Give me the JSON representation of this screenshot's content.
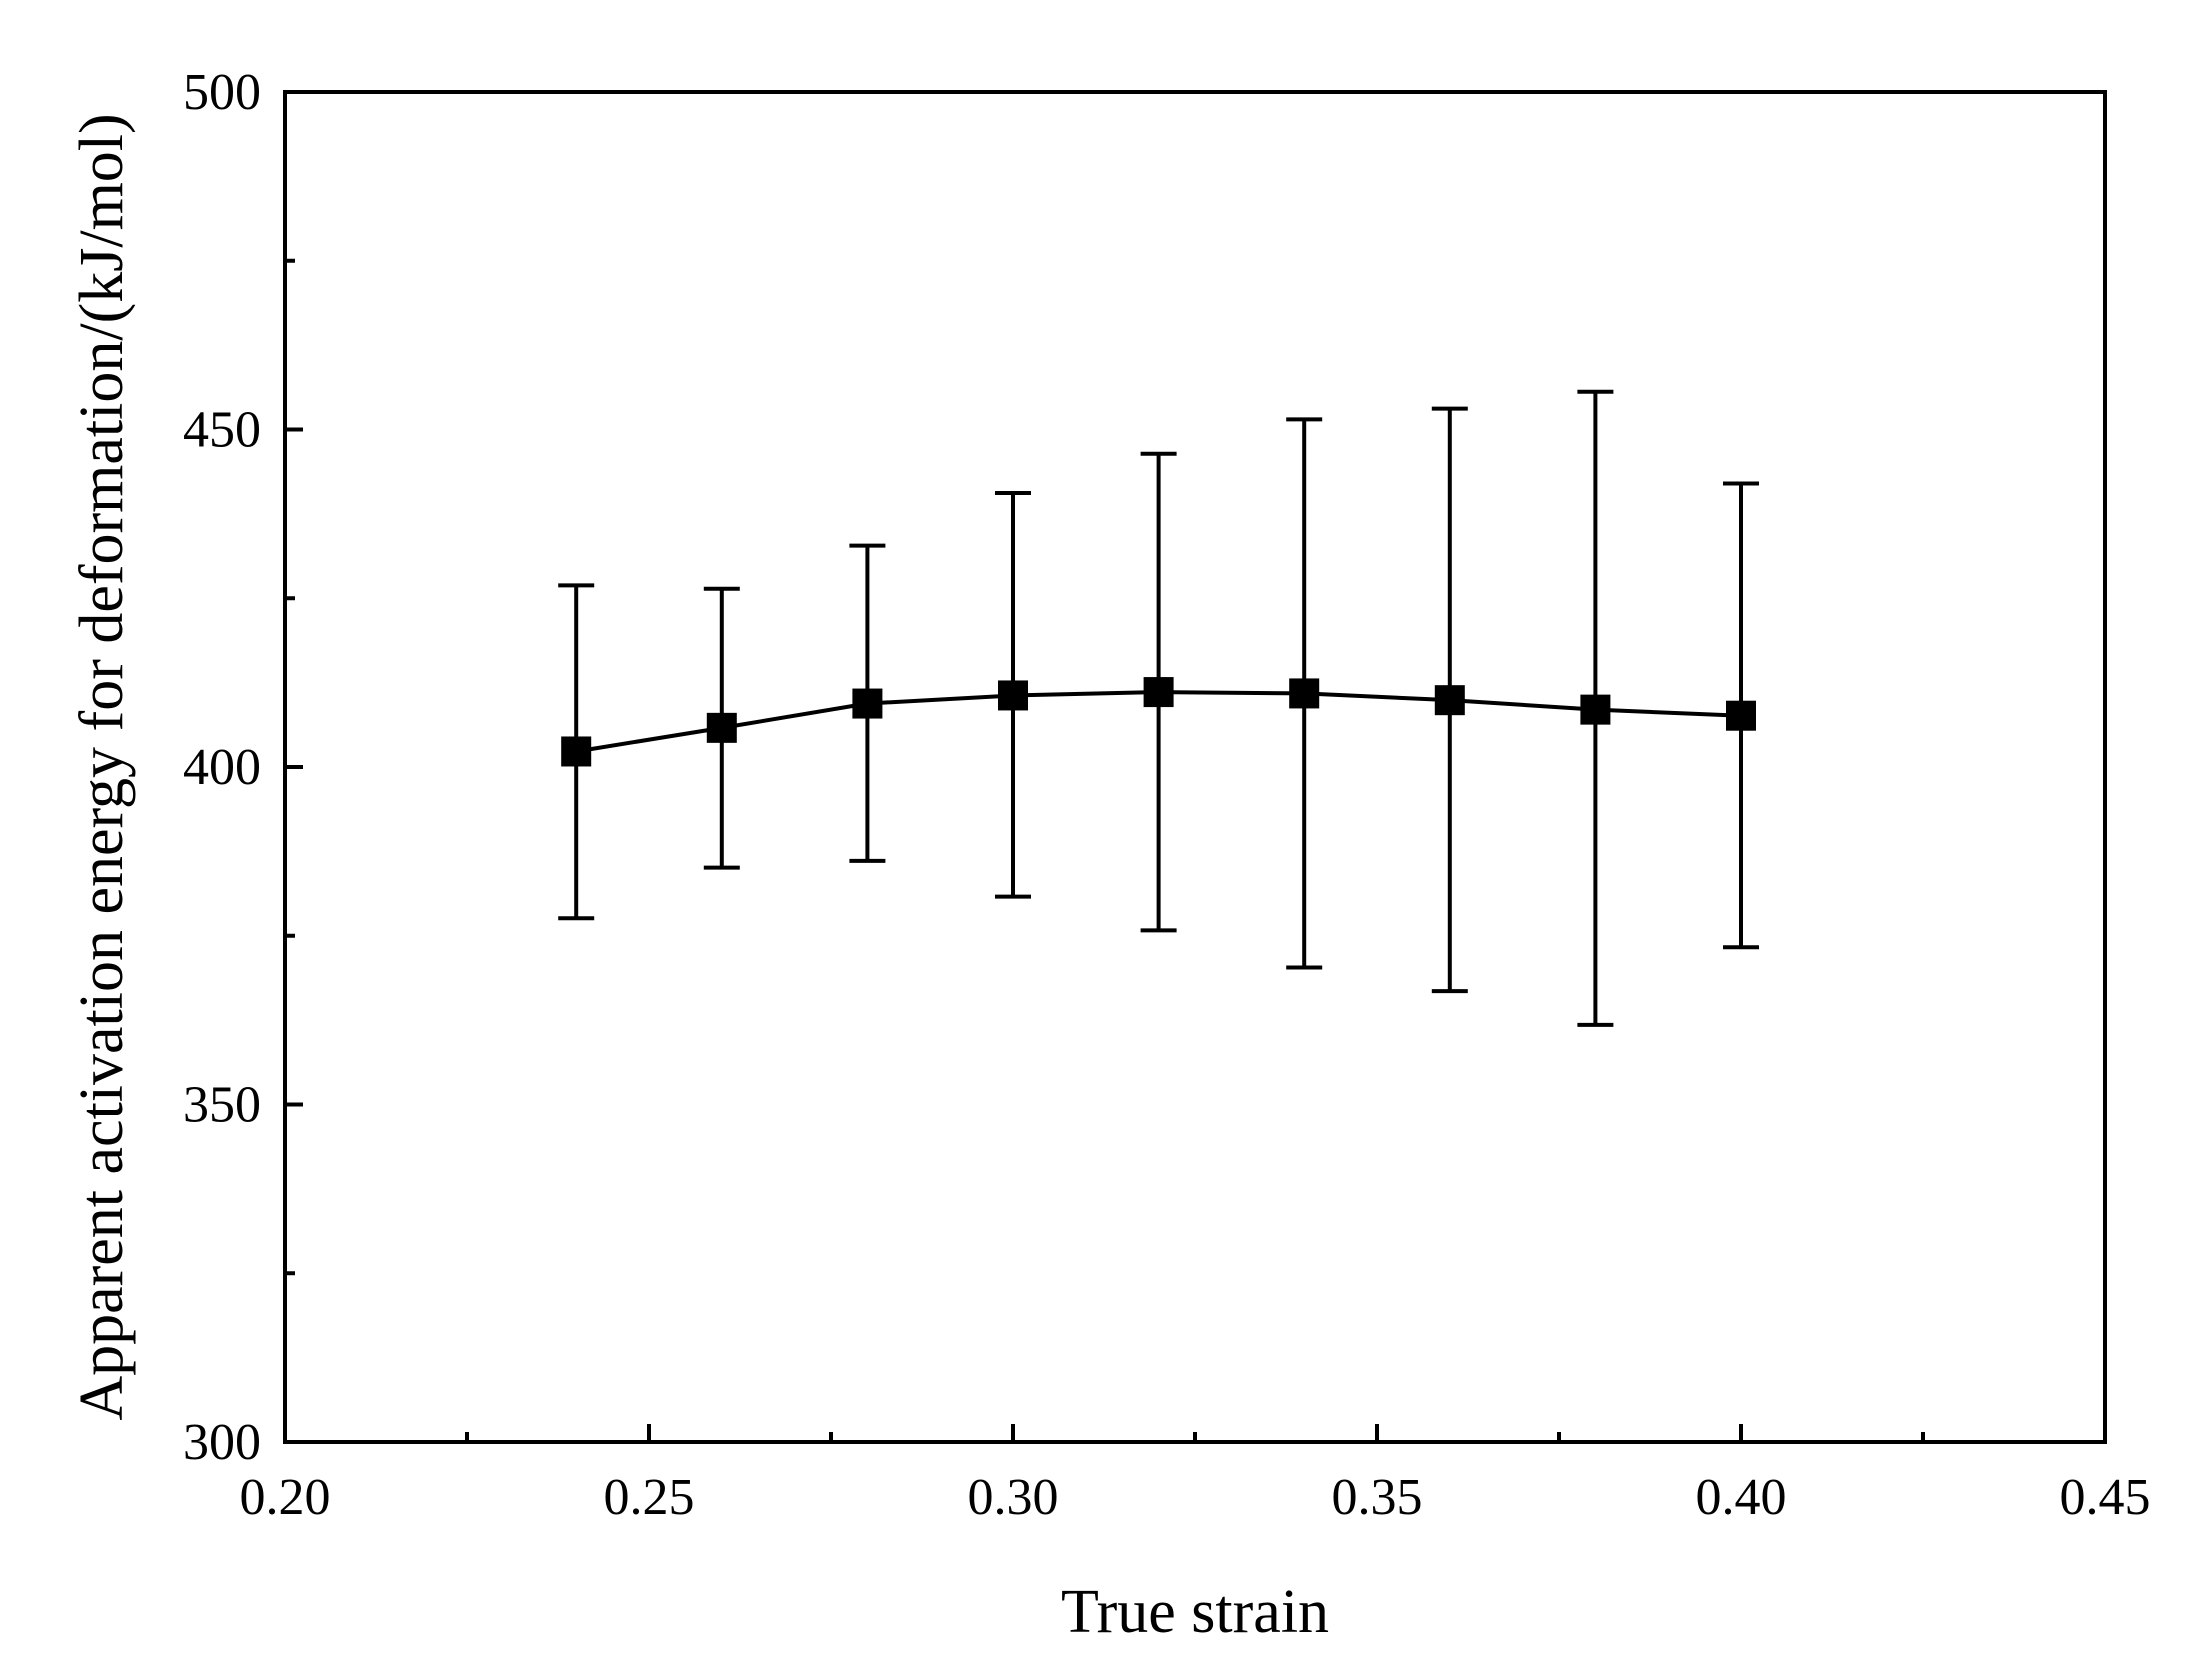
{
  "chart_data": {
    "type": "line",
    "title": "",
    "xlabel": "True strain",
    "ylabel": "Apparent activation energy for deformation/(kJ/mol)",
    "xlim": [
      0.2,
      0.45
    ],
    "ylim": [
      300,
      500
    ],
    "x_ticks": [
      "0.20",
      "0.25",
      "0.30",
      "0.35",
      "0.40",
      "0.45"
    ],
    "x_tick_values": [
      0.2,
      0.25,
      0.3,
      0.35,
      0.4,
      0.45
    ],
    "x_minor_ticks": [
      0.225,
      0.275,
      0.325,
      0.375,
      0.425
    ],
    "y_ticks": [
      "300",
      "350",
      "400",
      "450",
      "500"
    ],
    "y_tick_values": [
      300,
      350,
      400,
      450,
      500
    ],
    "y_minor_ticks": [
      325,
      375,
      425,
      475
    ],
    "grid": false,
    "legend": "none",
    "marker": "square",
    "color": "#000000",
    "series": [
      {
        "x": [
          0.24,
          0.26,
          0.28,
          0.3,
          0.32,
          0.34,
          0.36,
          0.38,
          0.4
        ],
        "y": [
          402.3,
          405.8,
          409.4,
          410.6,
          411.1,
          410.9,
          409.9,
          408.5,
          407.6
        ],
        "error_low": [
          377.6,
          385.1,
          386.1,
          380.8,
          375.8,
          370.3,
          366.8,
          361.8,
          373.3
        ],
        "error_high": [
          426.9,
          426.4,
          432.8,
          440.6,
          446.4,
          451.5,
          453.1,
          455.6,
          442.0
        ]
      }
    ]
  }
}
